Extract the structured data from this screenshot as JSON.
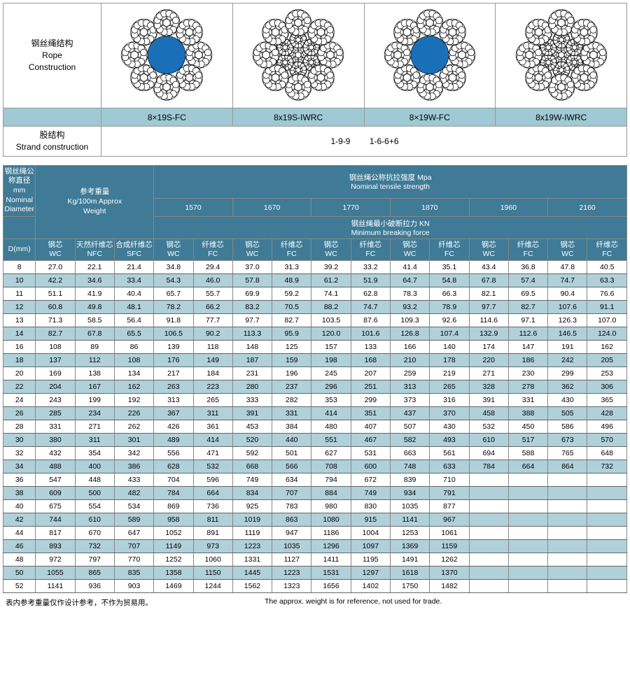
{
  "construction": {
    "row_label_cn": "钢丝绳结构",
    "row_label_en1": "Rope",
    "row_label_en2": "Construction",
    "types": [
      "8×19S-FC",
      "8x19S-IWRC",
      "8×19W-FC",
      "8x19W-IWRC"
    ],
    "strand_label_cn": "股结构",
    "strand_label_en": "Strand construction",
    "strand_values": [
      "1-9-9",
      "1-6-6+6"
    ],
    "colors": {
      "band": "#9fc9d4",
      "core_fill": "#1a70b8",
      "wire_stroke": "#1a1a1a"
    }
  },
  "table": {
    "hdr_diameter_cn": "钢丝绳公称直径mm",
    "hdr_diameter_en1": "Nominal",
    "hdr_diameter_en2": "Diameter",
    "hdr_weight_cn": "参考重量",
    "hdr_weight_en1": "Kg/100m Approx",
    "hdr_weight_en2": "Weight",
    "hdr_tensile_cn": "钢丝绳公称抗拉强度 Mpa",
    "hdr_tensile_en": "Nominal tensile strength",
    "hdr_breaking_cn": "钢丝绳最小破断拉力 KN",
    "hdr_breaking_en": "Minimum breaking force",
    "tensile_values": [
      "1570",
      "1670",
      "1770",
      "1870",
      "1960",
      "2160"
    ],
    "col_d": "D(mm)",
    "weight_cols": [
      {
        "cn": "钢芯",
        "en": "WC"
      },
      {
        "cn": "天然纤维芯",
        "en": "NFC"
      },
      {
        "cn": "合成纤维芯",
        "en": "SFC"
      }
    ],
    "force_subs": [
      {
        "cn": "钢芯",
        "en": "WC"
      },
      {
        "cn": "纤维芯",
        "en": "FC"
      }
    ],
    "rows": [
      [
        "8",
        "27.0",
        "22.1",
        "21.4",
        "34.8",
        "29.4",
        "37.0",
        "31.3",
        "39.2",
        "33.2",
        "41.4",
        "35.1",
        "43.4",
        "36.8",
        "47.8",
        "40.5"
      ],
      [
        "10",
        "42.2",
        "34.6",
        "33.4",
        "54.3",
        "46.0",
        "57.8",
        "48.9",
        "61.2",
        "51.9",
        "64.7",
        "54.8",
        "67.8",
        "57.4",
        "74.7",
        "63.3"
      ],
      [
        "11",
        "51.1",
        "41.9",
        "40.4",
        "65.7",
        "55.7",
        "69.9",
        "59.2",
        "74.1",
        "62.8",
        "78.3",
        "66.3",
        "82.1",
        "69.5",
        "90.4",
        "76.6"
      ],
      [
        "12",
        "60.8",
        "49.8",
        "48.1",
        "78.2",
        "66.2",
        "83.2",
        "70.5",
        "88.2",
        "74.7",
        "93.2",
        "78.9",
        "97.7",
        "82.7",
        "107.6",
        "91.1"
      ],
      [
        "13",
        "71.3",
        "58.5",
        "56.4",
        "91.8",
        "77.7",
        "97.7",
        "82.7",
        "103.5",
        "87.6",
        "109.3",
        "92.6",
        "114.6",
        "97.1",
        "126.3",
        "107.0"
      ],
      [
        "14",
        "82.7",
        "67.8",
        "65.5",
        "106.5",
        "90.2",
        "113.3",
        "95.9",
        "120.0",
        "101.6",
        "126.8",
        "107.4",
        "132.9",
        "112.6",
        "146.5",
        "124.0"
      ],
      [
        "16",
        "108",
        "89",
        "86",
        "139",
        "118",
        "148",
        "125",
        "157",
        "133",
        "166",
        "140",
        "174",
        "147",
        "191",
        "162"
      ],
      [
        "18",
        "137",
        "112",
        "108",
        "176",
        "149",
        "187",
        "159",
        "198",
        "168",
        "210",
        "178",
        "220",
        "186",
        "242",
        "205"
      ],
      [
        "20",
        "169",
        "138",
        "134",
        "217",
        "184",
        "231",
        "196",
        "245",
        "207",
        "259",
        "219",
        "271",
        "230",
        "299",
        "253"
      ],
      [
        "22",
        "204",
        "167",
        "162",
        "263",
        "223",
        "280",
        "237",
        "296",
        "251",
        "313",
        "265",
        "328",
        "278",
        "362",
        "306"
      ],
      [
        "24",
        "243",
        "199",
        "192",
        "313",
        "265",
        "333",
        "282",
        "353",
        "299",
        "373",
        "316",
        "391",
        "331",
        "430",
        "365"
      ],
      [
        "26",
        "285",
        "234",
        "226",
        "367",
        "311",
        "391",
        "331",
        "414",
        "351",
        "437",
        "370",
        "458",
        "388",
        "505",
        "428"
      ],
      [
        "28",
        "331",
        "271",
        "262",
        "426",
        "361",
        "453",
        "384",
        "480",
        "407",
        "507",
        "430",
        "532",
        "450",
        "586",
        "496"
      ],
      [
        "30",
        "380",
        "311",
        "301",
        "489",
        "414",
        "520",
        "440",
        "551",
        "467",
        "582",
        "493",
        "610",
        "517",
        "673",
        "570"
      ],
      [
        "32",
        "432",
        "354",
        "342",
        "556",
        "471",
        "592",
        "501",
        "627",
        "531",
        "663",
        "561",
        "694",
        "588",
        "765",
        "648"
      ],
      [
        "34",
        "488",
        "400",
        "386",
        "628",
        "532",
        "668",
        "566",
        "708",
        "600",
        "748",
        "633",
        "784",
        "664",
        "864",
        "732"
      ],
      [
        "36",
        "547",
        "448",
        "433",
        "704",
        "596",
        "749",
        "634",
        "794",
        "672",
        "839",
        "710",
        "",
        "",
        "",
        ""
      ],
      [
        "38",
        "609",
        "500",
        "482",
        "784",
        "664",
        "834",
        "707",
        "884",
        "749",
        "934",
        "791",
        "",
        "",
        "",
        ""
      ],
      [
        "40",
        "675",
        "554",
        "534",
        "869",
        "736",
        "925",
        "783",
        "980",
        "830",
        "1035",
        "877",
        "",
        "",
        "",
        ""
      ],
      [
        "42",
        "744",
        "610",
        "589",
        "958",
        "811",
        "1019",
        "863",
        "1080",
        "915",
        "1141",
        "967",
        "",
        "",
        "",
        ""
      ],
      [
        "44",
        "817",
        "670",
        "647",
        "1052",
        "891",
        "1119",
        "947",
        "1186",
        "1004",
        "1253",
        "1061",
        "",
        "",
        "",
        ""
      ],
      [
        "46",
        "893",
        "732",
        "707",
        "1149",
        "973",
        "1223",
        "1035",
        "1296",
        "1097",
        "1369",
        "1159",
        "",
        "",
        "",
        ""
      ],
      [
        "48",
        "972",
        "797",
        "770",
        "1252",
        "1060",
        "1331",
        "1127",
        "1411",
        "1195",
        "1491",
        "1262",
        "",
        "",
        "",
        ""
      ],
      [
        "50",
        "1055",
        "865",
        "835",
        "1358",
        "1150",
        "1445",
        "1223",
        "1531",
        "1297",
        "1618",
        "1370",
        "",
        "",
        "",
        ""
      ],
      [
        "52",
        "1141",
        "936",
        "903",
        "1469",
        "1244",
        "1562",
        "1323",
        "1656",
        "1402",
        "1750",
        "1482",
        "",
        "",
        "",
        ""
      ]
    ],
    "striped_indices": [
      1,
      3,
      5,
      7,
      9,
      11,
      13,
      15,
      17,
      19,
      21,
      23
    ],
    "colors": {
      "header_bg": "#3f7a96",
      "stripe_bg": "#b0d0da"
    }
  },
  "footnote": {
    "cn": "表内参考重量仅作设计参考，不作为贸易用。",
    "en": "The approx. weight is for reference, not used for trade."
  }
}
